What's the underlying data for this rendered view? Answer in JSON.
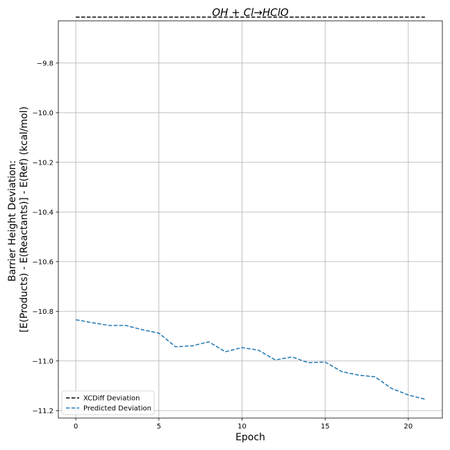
{
  "chart_data": {
    "type": "line",
    "title": "OH + Cl→HClO",
    "xlabel": "Epoch",
    "ylabel_lines": [
      "Barrier Height Deviation:",
      "[E(Products) - E(Reactants)] - E(Ref) (kcal/mol)"
    ],
    "xlim": [
      -1.05,
      22.05
    ],
    "ylim": [
      -11.23,
      -9.63
    ],
    "x_ticks": [
      0,
      5,
      10,
      15,
      20
    ],
    "x_tick_labels": [
      "0",
      "5",
      "10",
      "15",
      "20"
    ],
    "y_ticks": [
      -9.8,
      -10.0,
      -10.2,
      -10.4,
      -10.6,
      -10.8,
      -11.0,
      -11.2
    ],
    "y_tick_labels": [
      "−9.8",
      "−10.0",
      "−10.2",
      "−10.4",
      "−10.6",
      "−10.8",
      "−11.0",
      "−11.2"
    ],
    "grid": true,
    "legend_position": "lower-left",
    "series": [
      {
        "name": "XCDiff Deviation",
        "color": "#000000",
        "style": "dashed",
        "x": [
          0,
          21
        ],
        "y": [
          -9.615,
          -9.615
        ]
      },
      {
        "name": "Predicted Deviation",
        "color": "#1f77b4",
        "style": "dashed",
        "x": [
          0,
          1,
          2,
          3,
          4,
          5,
          6,
          7,
          8,
          9,
          10,
          11,
          12,
          13,
          14,
          15,
          16,
          17,
          18,
          19,
          20,
          21
        ],
        "y": [
          -10.834,
          -10.846,
          -10.857,
          -10.857,
          -10.874,
          -10.888,
          -10.943,
          -10.939,
          -10.923,
          -10.963,
          -10.946,
          -10.957,
          -10.996,
          -10.984,
          -11.007,
          -11.004,
          -11.043,
          -11.057,
          -11.064,
          -11.111,
          -11.137,
          -11.154
        ]
      }
    ]
  }
}
